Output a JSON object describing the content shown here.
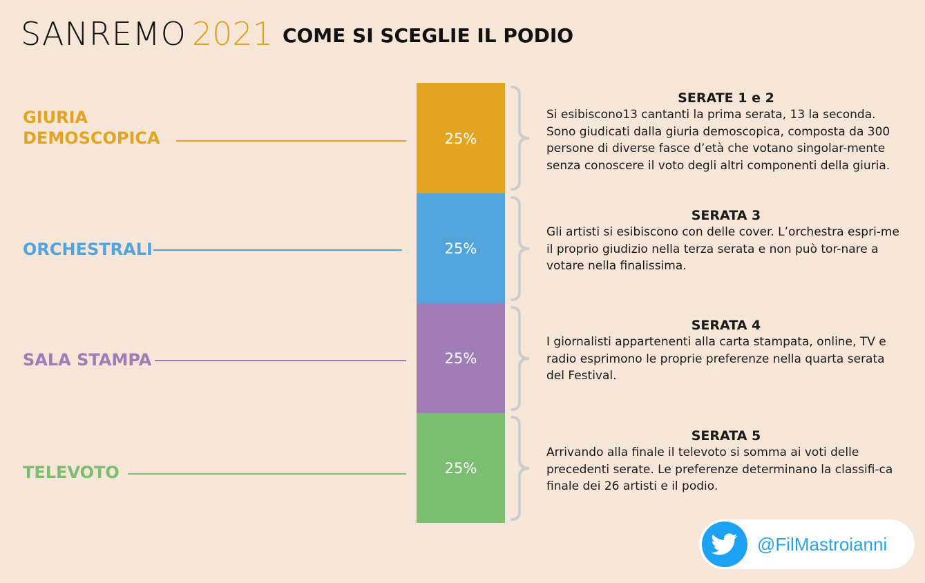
{
  "header": {
    "brand": "SANREMO",
    "year": "2021",
    "subtitle": "COME SI SCEGLIE IL PODIO"
  },
  "colors": {
    "giuria": "#e3a521",
    "orchestrali": "#52a4dd",
    "sala_stampa": "#a07db7",
    "televoto": "#7bbe71",
    "brace": "#cccccc",
    "twitter": "#1da1f2"
  },
  "segments": [
    {
      "label": "GIURIA DEMOSCOPICA",
      "share": "25%",
      "heading": "SERATE 1 e 2",
      "text": "Si esibiscono13 cantanti la prima serata, 13 la seconda. Sono giudicati dalla giuria demoscopica, composta da 300 persone di diverse fasce d’età che votano singolar-mente senza conoscere il voto degli altri componenti della giuria."
    },
    {
      "label": "ORCHESTRALI",
      "share": "25%",
      "heading": "SERATA 3",
      "text": "Gli artisti si esibiscono con delle cover. L’orchestra espri-me il proprio giudizio nella terza serata e non può tor-nare a votare nella finalissima."
    },
    {
      "label": "SALA STAMPA",
      "share": "25%",
      "heading": "SERATA 4",
      "text": "I giornalisti appartenenti alla carta stampata, online, TV e radio esprimono le proprie preferenze nella quarta serata del Festival."
    },
    {
      "label": "TELEVOTO",
      "share": "25%",
      "heading": "SERATA 5",
      "text": "Arrivando alla finale il televoto si somma ai voti delle precedenti serate. Le preferenze determinano la classifi-ca finale dei 26 artisti e il podio."
    }
  ],
  "social": {
    "icon": "twitter-icon",
    "handle": "@FilMastroianni"
  }
}
